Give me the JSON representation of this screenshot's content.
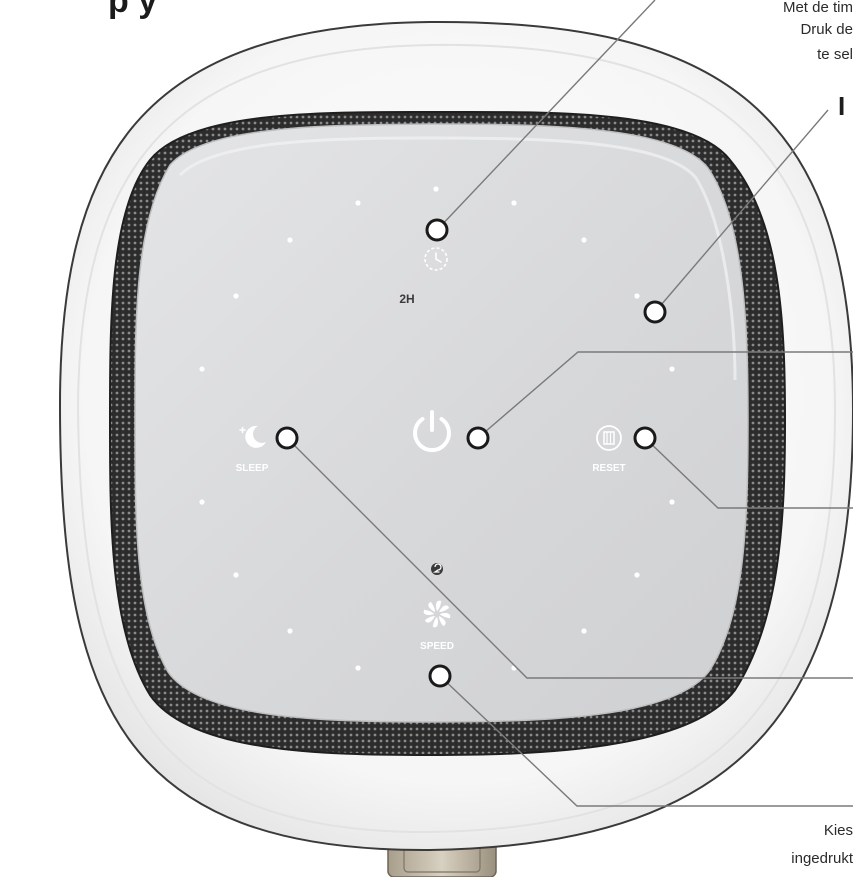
{
  "device": {
    "panel": {
      "timer_labels": [
        "",
        "2H",
        ""
      ],
      "sleep_label": "SLEEP",
      "reset_label": "RESET",
      "speed_label": "SPEED"
    },
    "icons": [
      "clock-icon",
      "power-icon",
      "sleep-icon",
      "filter-reset-icon",
      "fan-speed-icon",
      "speed-level-icon"
    ]
  },
  "callouts": {
    "top_right_line1": "Met de tim",
    "top_right_line2": "Druk de",
    "top_right_line3": "te sel",
    "top_right_heading": "I",
    "bottom_right_line1": "Kies",
    "bottom_right_line2": "ingedrukt"
  },
  "colors": {
    "panel": "#d8d9db",
    "housing": "#fafafa",
    "grille": "#3a3a3a",
    "leader_line": "#7a7a7a",
    "marker_fill": "#ffffff",
    "marker_stroke": "#1a1a1a"
  }
}
